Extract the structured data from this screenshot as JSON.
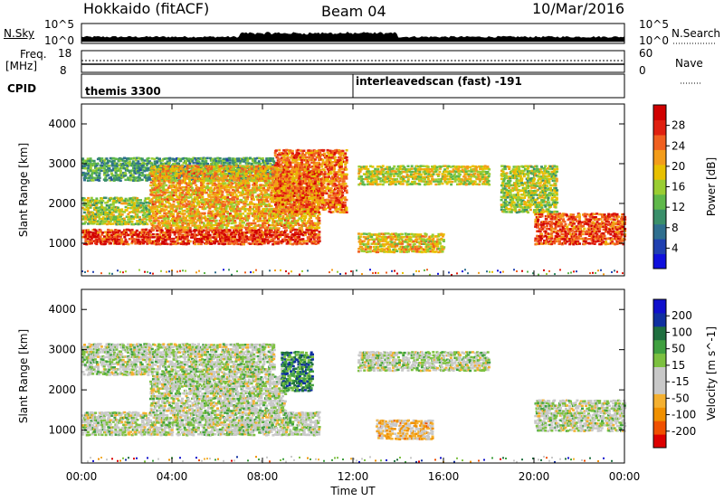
{
  "header": {
    "station": "Hokkaido (fitACF)",
    "beam": "Beam 04",
    "date": "10/Mar/2016"
  },
  "noise_panel": {
    "left_label": "N.Sky",
    "right_label": "N.Search",
    "tick_top": "10^5",
    "tick_bottom": "10^0"
  },
  "freq_panel": {
    "label_line1": "Freq.",
    "label_line2": "[MHz]",
    "tick_top": "18",
    "tick_bottom": "8",
    "right_label": "Nave",
    "right_tick_top": "60",
    "right_tick_bottom": "0"
  },
  "cpid_panel": {
    "label": "CPID",
    "segments": [
      {
        "start_hour": 0,
        "text": "themis 3300"
      },
      {
        "start_hour": 12,
        "text": "interleavedscan (fast) -191"
      }
    ]
  },
  "colors": {
    "power": [
      "#1010dd",
      "#2040b0",
      "#2f6f8f",
      "#3a8f6a",
      "#5fb84a",
      "#9acd32",
      "#e8c000",
      "#f39c1a",
      "#f06020",
      "#e02010",
      "#d00000"
    ],
    "velocity": [
      "#dd0000",
      "#f05000",
      "#f09000",
      "#f4b030",
      "#c8c8c8",
      "#c8c8c8",
      "#7cc040",
      "#40a040",
      "#1f6f3f",
      "#1030a0",
      "#1010cc"
    ]
  },
  "chart_data": [
    {
      "type": "heatmap",
      "quantity": "Power",
      "colorbar_label": "Power [dB]",
      "colorbar_ticks": [
        "4",
        "8",
        "12",
        "16",
        "20",
        "24",
        "28"
      ],
      "colorbar_range": [
        0,
        32
      ],
      "ylabel": "Slant Range [km]",
      "yticks": [
        "1000",
        "2000",
        "3000",
        "4000"
      ],
      "ylim": [
        180,
        4500
      ],
      "xlim": [
        0,
        24
      ],
      "bands": [
        {
          "t0": 0,
          "t1": 10.5,
          "r0": 1000,
          "r1": 1400,
          "level": 0.85
        },
        {
          "t0": 0,
          "t1": 3,
          "r0": 1500,
          "r1": 2200,
          "level": 0.5
        },
        {
          "t0": 0,
          "t1": 8.5,
          "r0": 2600,
          "r1": 3200,
          "level": 0.35
        },
        {
          "t0": 3,
          "t1": 10.5,
          "r0": 1400,
          "r1": 3000,
          "level": 0.65
        },
        {
          "t0": 8.5,
          "t1": 11.7,
          "r0": 1800,
          "r1": 3400,
          "level": 0.75
        },
        {
          "t0": 12.2,
          "t1": 18,
          "r0": 2500,
          "r1": 3000,
          "level": 0.55
        },
        {
          "t0": 12.2,
          "t1": 16,
          "r0": 800,
          "r1": 1300,
          "level": 0.6
        },
        {
          "t0": 20,
          "t1": 24,
          "r0": 1000,
          "r1": 1800,
          "level": 0.8
        },
        {
          "t0": 18.5,
          "t1": 21,
          "r0": 1800,
          "r1": 3000,
          "level": 0.5
        }
      ]
    },
    {
      "type": "heatmap",
      "quantity": "Velocity",
      "colorbar_label": "Velocity [m s^-1]",
      "colorbar_ticks": [
        "-200",
        "-100",
        "-50",
        "-15",
        "15",
        "50",
        "100",
        "200"
      ],
      "colorbar_range": [
        -250,
        250
      ],
      "ylabel": "Slant Range [km]",
      "yticks": [
        "1000",
        "2000",
        "3000",
        "4000"
      ],
      "ylim": [
        180,
        4500
      ],
      "xlim": [
        0,
        24
      ],
      "xlabel": "Time UT",
      "xticks": [
        "00:00",
        "04:00",
        "08:00",
        "12:00",
        "16:00",
        "20:00",
        "00:00"
      ],
      "bands": [
        {
          "t0": 0,
          "t1": 10.5,
          "r0": 900,
          "r1": 1500,
          "level": 0.5
        },
        {
          "t0": 0,
          "t1": 8.5,
          "r0": 2400,
          "r1": 3200,
          "level": 0.5
        },
        {
          "t0": 3,
          "t1": 9,
          "r0": 1500,
          "r1": 2400,
          "level": 0.5
        },
        {
          "t0": 8.8,
          "t1": 10.2,
          "r0": 2000,
          "r1": 3000,
          "level": 0.72
        },
        {
          "t0": 12.2,
          "t1": 18,
          "r0": 2500,
          "r1": 3000,
          "level": 0.5
        },
        {
          "t0": 13,
          "t1": 15.5,
          "r0": 800,
          "r1": 1300,
          "level": 0.35
        },
        {
          "t0": 20,
          "t1": 24,
          "r0": 1000,
          "r1": 1800,
          "level": 0.5
        }
      ]
    }
  ]
}
